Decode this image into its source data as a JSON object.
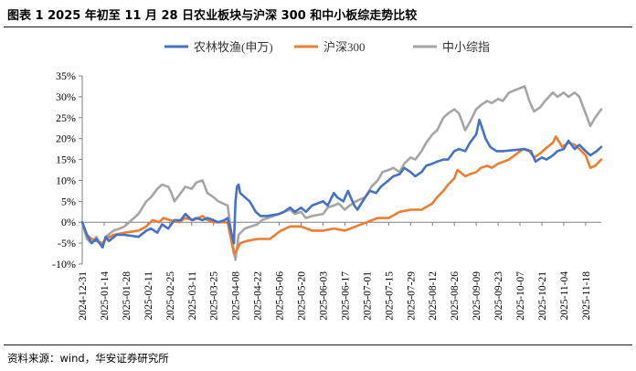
{
  "figure": {
    "title": "图表 1 2025 年初至 11 月 28 日农业板块与沪深 300 和中小板综走势比较",
    "source": "资料来源：wind，华安证券研究所"
  },
  "chart_data": {
    "type": "line",
    "title": "",
    "xlabel": "",
    "ylabel": "",
    "ylim": [
      -10,
      35
    ],
    "y_ticks": [
      "35%",
      "30%",
      "25%",
      "20%",
      "15%",
      "10%",
      "5%",
      "0%",
      "-5%",
      "-10%"
    ],
    "y_tick_values": [
      35,
      30,
      25,
      20,
      15,
      10,
      5,
      0,
      -5,
      -10
    ],
    "x_tick_labels": [
      "2024-12-31",
      "2025-01-14",
      "2025-01-28",
      "2025-02-11",
      "2025-02-25",
      "2025-03-11",
      "2025-03-25",
      "2025-04-08",
      "2025-04-22",
      "2025-05-06",
      "2025-05-20",
      "2025-06-03",
      "2025-06-17",
      "2025-07-01",
      "2025-07-15",
      "2025-07-29",
      "2025-08-12",
      "2025-08-26",
      "2025-09-09",
      "2025-09-23",
      "2025-10-07",
      "2025-10-21",
      "2025-11-04",
      "2025-11-18"
    ],
    "x_range": [
      "2024-12-31",
      "2025-11-28"
    ],
    "grid": false,
    "legend_position": "top",
    "series": [
      {
        "name": "农林牧渔(申万)",
        "color": "#4472C4",
        "points": [
          [
            "2024-12-31",
            0
          ],
          [
            "2025-01-03",
            -3
          ],
          [
            "2025-01-06",
            -5
          ],
          [
            "2025-01-09",
            -4
          ],
          [
            "2025-01-13",
            -6
          ],
          [
            "2025-01-15",
            -3.5
          ],
          [
            "2025-01-17",
            -4.5
          ],
          [
            "2025-01-22",
            -3
          ],
          [
            "2025-01-27",
            -3
          ],
          [
            "2025-02-05",
            -3.5
          ],
          [
            "2025-02-10",
            -2
          ],
          [
            "2025-02-13",
            -1.5
          ],
          [
            "2025-02-17",
            -2.5
          ],
          [
            "2025-02-20",
            -0.5
          ],
          [
            "2025-02-24",
            -1.5
          ],
          [
            "2025-02-28",
            0.5
          ],
          [
            "2025-03-04",
            0.5
          ],
          [
            "2025-03-07",
            2
          ],
          [
            "2025-03-11",
            0.5
          ],
          [
            "2025-03-14",
            1
          ],
          [
            "2025-03-18",
            0.5
          ],
          [
            "2025-03-21",
            1
          ],
          [
            "2025-03-25",
            0.5
          ],
          [
            "2025-03-28",
            0
          ],
          [
            "2025-04-01",
            0.5
          ],
          [
            "2025-04-03",
            1
          ],
          [
            "2025-04-07",
            -5
          ],
          [
            "2025-04-08",
            5
          ],
          [
            "2025-04-09",
            8.5
          ],
          [
            "2025-04-10",
            9
          ],
          [
            "2025-04-11",
            7
          ],
          [
            "2025-04-14",
            6
          ],
          [
            "2025-04-17",
            5
          ],
          [
            "2025-04-21",
            2.5
          ],
          [
            "2025-04-24",
            1.5
          ],
          [
            "2025-04-28",
            1.5
          ],
          [
            "2025-05-06",
            2
          ],
          [
            "2025-05-09",
            2.5
          ],
          [
            "2025-05-13",
            3.5
          ],
          [
            "2025-05-16",
            2.5
          ],
          [
            "2025-05-20",
            3.5
          ],
          [
            "2025-05-23",
            2.5
          ],
          [
            "2025-05-27",
            4
          ],
          [
            "2025-06-03",
            5
          ],
          [
            "2025-06-06",
            4
          ],
          [
            "2025-06-10",
            7
          ],
          [
            "2025-06-12",
            6
          ],
          [
            "2025-06-16",
            5
          ],
          [
            "2025-06-19",
            7.5
          ],
          [
            "2025-06-23",
            4
          ],
          [
            "2025-06-25",
            3
          ],
          [
            "2025-06-30",
            6
          ],
          [
            "2025-07-03",
            7.5
          ],
          [
            "2025-07-07",
            7
          ],
          [
            "2025-07-10",
            8.5
          ],
          [
            "2025-07-15",
            10
          ],
          [
            "2025-07-18",
            11
          ],
          [
            "2025-07-22",
            11.5
          ],
          [
            "2025-07-25",
            13
          ],
          [
            "2025-07-29",
            12
          ],
          [
            "2025-08-01",
            11
          ],
          [
            "2025-08-05",
            12
          ],
          [
            "2025-08-08",
            13.5
          ],
          [
            "2025-08-12",
            14
          ],
          [
            "2025-08-15",
            14.5
          ],
          [
            "2025-08-19",
            15
          ],
          [
            "2025-08-22",
            15
          ],
          [
            "2025-08-26",
            17
          ],
          [
            "2025-08-29",
            17.5
          ],
          [
            "2025-09-02",
            17
          ],
          [
            "2025-09-05",
            19
          ],
          [
            "2025-09-09",
            21
          ],
          [
            "2025-09-11",
            24.5
          ],
          [
            "2025-09-15",
            20
          ],
          [
            "2025-09-18",
            18
          ],
          [
            "2025-09-22",
            17
          ],
          [
            "2025-09-26",
            17
          ],
          [
            "2025-10-10",
            17.5
          ],
          [
            "2025-10-14",
            17
          ],
          [
            "2025-10-17",
            14.5
          ],
          [
            "2025-10-21",
            15.5
          ],
          [
            "2025-10-24",
            15
          ],
          [
            "2025-10-28",
            16
          ],
          [
            "2025-10-31",
            17
          ],
          [
            "2025-11-04",
            17.5
          ],
          [
            "2025-11-07",
            19.5
          ],
          [
            "2025-11-11",
            17.5
          ],
          [
            "2025-11-14",
            18.5
          ],
          [
            "2025-11-18",
            17
          ],
          [
            "2025-11-21",
            16
          ],
          [
            "2025-11-25",
            17
          ],
          [
            "2025-11-28",
            18
          ]
        ]
      },
      {
        "name": "沪深300",
        "color": "#ED7D31",
        "points": [
          [
            "2024-12-31",
            0
          ],
          [
            "2025-01-03",
            -3
          ],
          [
            "2025-01-06",
            -4
          ],
          [
            "2025-01-09",
            -4.5
          ],
          [
            "2025-01-13",
            -5
          ],
          [
            "2025-01-15",
            -4
          ],
          [
            "2025-01-20",
            -3
          ],
          [
            "2025-01-27",
            -2.5
          ],
          [
            "2025-02-05",
            -2
          ],
          [
            "2025-02-10",
            -1
          ],
          [
            "2025-02-14",
            0.5
          ],
          [
            "2025-02-18",
            0
          ],
          [
            "2025-02-21",
            1
          ],
          [
            "2025-02-25",
            0.5
          ],
          [
            "2025-03-03",
            0
          ],
          [
            "2025-03-07",
            1
          ],
          [
            "2025-03-12",
            0.5
          ],
          [
            "2025-03-18",
            1.5
          ],
          [
            "2025-03-21",
            0.5
          ],
          [
            "2025-03-25",
            0
          ],
          [
            "2025-04-03",
            0
          ],
          [
            "2025-04-07",
            -7.5
          ],
          [
            "2025-04-09",
            -6.5
          ],
          [
            "2025-04-11",
            -5
          ],
          [
            "2025-04-15",
            -4.5
          ],
          [
            "2025-04-22",
            -4
          ],
          [
            "2025-04-30",
            -4
          ],
          [
            "2025-05-07",
            -2
          ],
          [
            "2025-05-13",
            -1
          ],
          [
            "2025-05-20",
            -1
          ],
          [
            "2025-05-27",
            -2
          ],
          [
            "2025-06-03",
            -2
          ],
          [
            "2025-06-10",
            -1.5
          ],
          [
            "2025-06-17",
            -2
          ],
          [
            "2025-06-24",
            -1
          ],
          [
            "2025-07-01",
            0
          ],
          [
            "2025-07-08",
            1
          ],
          [
            "2025-07-15",
            1
          ],
          [
            "2025-07-22",
            2.5
          ],
          [
            "2025-07-29",
            3
          ],
          [
            "2025-08-05",
            3
          ],
          [
            "2025-08-12",
            4.5
          ],
          [
            "2025-08-15",
            6
          ],
          [
            "2025-08-19",
            7.5
          ],
          [
            "2025-08-22",
            9
          ],
          [
            "2025-08-26",
            10.5
          ],
          [
            "2025-08-28",
            12.5
          ],
          [
            "2025-09-02",
            11
          ],
          [
            "2025-09-05",
            11.5
          ],
          [
            "2025-09-09",
            12
          ],
          [
            "2025-09-12",
            13
          ],
          [
            "2025-09-16",
            13.5
          ],
          [
            "2025-09-19",
            13
          ],
          [
            "2025-09-23",
            14
          ],
          [
            "2025-09-30",
            15
          ],
          [
            "2025-10-09",
            17.5
          ],
          [
            "2025-10-13",
            17
          ],
          [
            "2025-10-16",
            15.5
          ],
          [
            "2025-10-20",
            16.5
          ],
          [
            "2025-10-23",
            17.5
          ],
          [
            "2025-10-28",
            19
          ],
          [
            "2025-10-30",
            20.5
          ],
          [
            "2025-11-03",
            18
          ],
          [
            "2025-11-07",
            19
          ],
          [
            "2025-11-11",
            18.5
          ],
          [
            "2025-11-14",
            17.5
          ],
          [
            "2025-11-18",
            16
          ],
          [
            "2025-11-21",
            13
          ],
          [
            "2025-11-24",
            13.5
          ],
          [
            "2025-11-28",
            15
          ]
        ]
      },
      {
        "name": "中小综指",
        "color": "#A5A5A5",
        "points": [
          [
            "2024-12-31",
            0
          ],
          [
            "2025-01-03",
            -4
          ],
          [
            "2025-01-06",
            -5
          ],
          [
            "2025-01-09",
            -3.5
          ],
          [
            "2025-01-13",
            -6
          ],
          [
            "2025-01-15",
            -3.5
          ],
          [
            "2025-01-20",
            -2
          ],
          [
            "2025-01-24",
            -1.5
          ],
          [
            "2025-01-27",
            -1
          ],
          [
            "2025-02-05",
            2
          ],
          [
            "2025-02-10",
            5
          ],
          [
            "2025-02-13",
            6
          ],
          [
            "2025-02-17",
            8
          ],
          [
            "2025-02-20",
            9
          ],
          [
            "2025-02-24",
            8.5
          ],
          [
            "2025-02-26",
            7
          ],
          [
            "2025-02-28",
            5
          ],
          [
            "2025-03-04",
            7
          ],
          [
            "2025-03-07",
            8.5
          ],
          [
            "2025-03-11",
            8
          ],
          [
            "2025-03-14",
            9.5
          ],
          [
            "2025-03-18",
            10
          ],
          [
            "2025-03-21",
            7
          ],
          [
            "2025-03-25",
            6
          ],
          [
            "2025-03-28",
            5
          ],
          [
            "2025-04-03",
            4
          ],
          [
            "2025-04-07",
            -7
          ],
          [
            "2025-04-08",
            -9
          ],
          [
            "2025-04-10",
            -3
          ],
          [
            "2025-04-14",
            -1.5
          ],
          [
            "2025-04-18",
            -1
          ],
          [
            "2025-04-22",
            -0.5
          ],
          [
            "2025-04-25",
            0.5
          ],
          [
            "2025-05-06",
            2
          ],
          [
            "2025-05-09",
            2.5
          ],
          [
            "2025-05-13",
            3
          ],
          [
            "2025-05-16",
            2
          ],
          [
            "2025-05-20",
            2.5
          ],
          [
            "2025-05-23",
            1
          ],
          [
            "2025-05-27",
            1.5
          ],
          [
            "2025-06-03",
            2
          ],
          [
            "2025-06-06",
            3.5
          ],
          [
            "2025-06-10",
            4
          ],
          [
            "2025-06-13",
            4.5
          ],
          [
            "2025-06-17",
            3
          ],
          [
            "2025-06-20",
            4
          ],
          [
            "2025-06-24",
            5
          ],
          [
            "2025-06-30",
            6
          ],
          [
            "2025-07-04",
            8.5
          ],
          [
            "2025-07-08",
            10
          ],
          [
            "2025-07-11",
            12
          ],
          [
            "2025-07-15",
            12.5
          ],
          [
            "2025-07-18",
            13
          ],
          [
            "2025-07-22",
            12
          ],
          [
            "2025-07-25",
            14
          ],
          [
            "2025-07-29",
            15.5
          ],
          [
            "2025-08-01",
            15
          ],
          [
            "2025-08-05",
            17
          ],
          [
            "2025-08-08",
            19
          ],
          [
            "2025-08-12",
            21
          ],
          [
            "2025-08-15",
            22
          ],
          [
            "2025-08-19",
            25
          ],
          [
            "2025-08-22",
            26
          ],
          [
            "2025-08-26",
            27
          ],
          [
            "2025-08-29",
            26
          ],
          [
            "2025-09-02",
            22
          ],
          [
            "2025-09-05",
            24
          ],
          [
            "2025-09-09",
            27
          ],
          [
            "2025-09-12",
            28
          ],
          [
            "2025-09-16",
            29
          ],
          [
            "2025-09-19",
            28.5
          ],
          [
            "2025-09-23",
            29.5
          ],
          [
            "2025-09-26",
            29
          ],
          [
            "2025-09-30",
            31
          ],
          [
            "2025-10-10",
            32.5
          ],
          [
            "2025-10-13",
            29
          ],
          [
            "2025-10-16",
            26.5
          ],
          [
            "2025-10-20",
            27.5
          ],
          [
            "2025-10-23",
            29
          ],
          [
            "2025-10-28",
            31
          ],
          [
            "2025-10-31",
            30
          ],
          [
            "2025-11-04",
            31
          ],
          [
            "2025-11-07",
            30
          ],
          [
            "2025-11-11",
            31
          ],
          [
            "2025-11-14",
            30
          ],
          [
            "2025-11-18",
            26
          ],
          [
            "2025-11-21",
            23
          ],
          [
            "2025-11-24",
            25
          ],
          [
            "2025-11-28",
            27
          ]
        ]
      }
    ]
  }
}
